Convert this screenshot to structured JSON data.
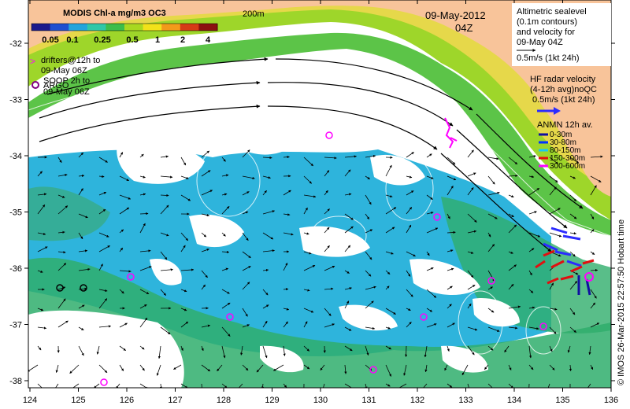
{
  "colorbar": {
    "title": "MODIS Chl-a mg/m3 OC3",
    "ticks": [
      "0.05",
      "0.1",
      "0.25",
      "0.5",
      "1",
      "2",
      "4"
    ],
    "colors": [
      "#1b1a8c",
      "#1f4fd0",
      "#22a4dc",
      "#2fc7a8",
      "#3cbd4b",
      "#a8d820",
      "#f2e21a",
      "#f39a1a",
      "#d63a16",
      "#8c1010"
    ]
  },
  "labels": {
    "depth_contour": "200m",
    "date": "09-May-2012",
    "time": "04Z",
    "drifters": [
      "drifters@12h to",
      "09-May 06Z"
    ],
    "argo": "ARGO",
    "soop": [
      "SOOP 2h to",
      "09-May 06Z"
    ],
    "altimetry": [
      "Altimetric sealevel",
      "(0.1m contours)",
      "and velocity for",
      "09-May 04Z",
      "0.5m/s (1kt 24h)"
    ],
    "hf_radar": [
      "HF radar velocity",
      "(4-12h avg)noQC",
      "0.5m/s (1kt 24h)"
    ],
    "anmn_title": "ANMN 12h av.",
    "anmn_depths": [
      "0-30m",
      "30-80m",
      "80-150m",
      "150-300m",
      "300-600m"
    ],
    "credit": "© IMOS 26-Mar-2015 22:57:50 Hobart time"
  },
  "colors": {
    "ocean_background": "#ffffff",
    "land": "#f8c49a",
    "low_chl": "#2eb4dc",
    "mid_chl": "#2fae6c",
    "shelf_chl": "#9ed62a",
    "coast_chl": "#e6d84a",
    "drifter": "#ff00ff",
    "hf_radar": "#2b2bff",
    "anmn": [
      "#1010a0",
      "#0033ff",
      "#19c8f0",
      "#e01010",
      "#ff00ff"
    ]
  },
  "axes": {
    "x_ticks": [
      "124",
      "125",
      "126",
      "127",
      "128",
      "129",
      "130",
      "131",
      "132",
      "133",
      "134",
      "135",
      "136"
    ],
    "y_ticks": [
      "-32",
      "-33",
      "-34",
      "-35",
      "-36",
      "-37",
      "-38"
    ]
  }
}
